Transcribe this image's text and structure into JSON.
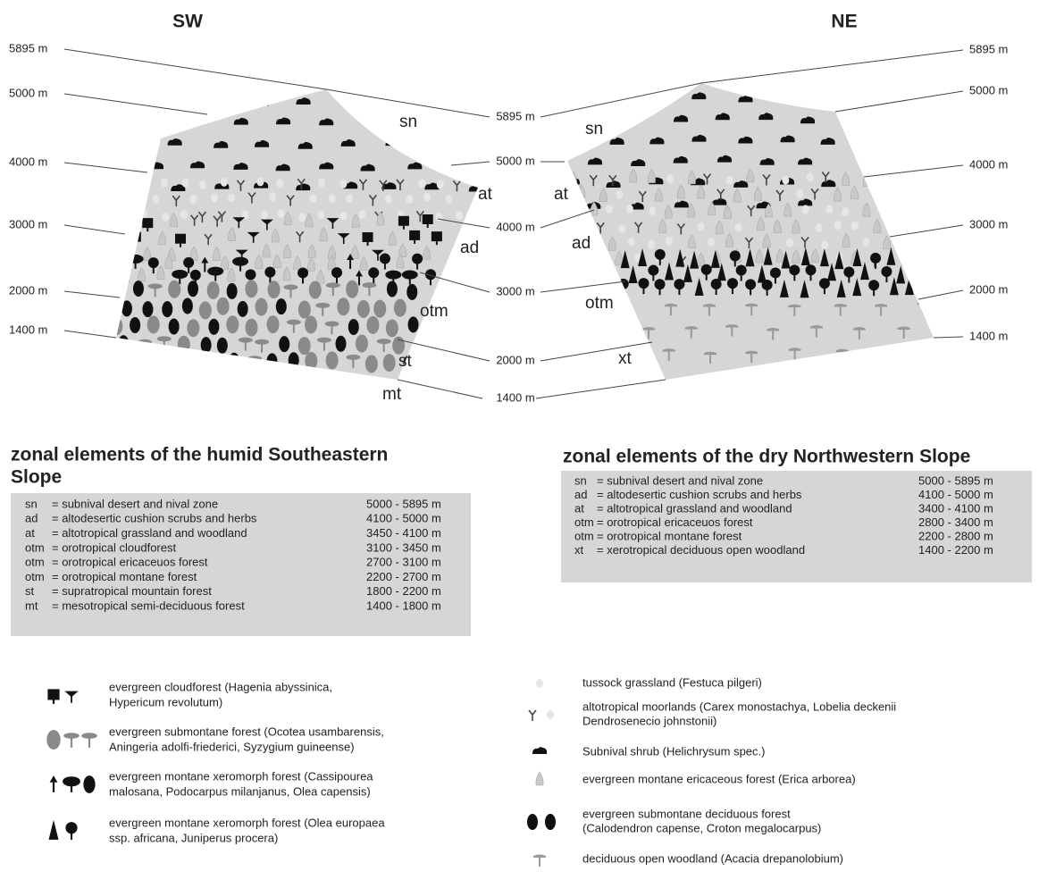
{
  "sw": {
    "title": "SW",
    "zones": [
      "sn",
      "at",
      "ad",
      "otm",
      "st",
      "mt"
    ]
  },
  "ne": {
    "title": "NE",
    "zones": [
      "sn",
      "at",
      "ad",
      "otm",
      "xt"
    ]
  },
  "left_altitudes": [
    "5895 m",
    "5000 m",
    "4000 m",
    "3000 m",
    "2000 m",
    "1400 m"
  ],
  "center_altitudes": [
    "5895 m",
    "5000 m",
    "4000 m",
    "3000 m",
    "2000 m",
    "1400 m"
  ],
  "right_altitudes": [
    "5895 m",
    "5000 m",
    "4000 m",
    "3000 m",
    "2000 m",
    "1400 m"
  ],
  "humid": {
    "title_lines": [
      "zonal elements of the humid Southeastern",
      "Slope"
    ],
    "rows": [
      [
        "sn",
        "= subnival desert and nival zone",
        "5000 - 5895 m"
      ],
      [
        "ad",
        "= altodesertic cushion scrubs and herbs",
        "4100 - 5000 m"
      ],
      [
        "at",
        "= altotropical grassland and woodland",
        "3450 - 4100 m"
      ],
      [
        "otm",
        "= orotropical cloudforest",
        "3100 - 3450 m"
      ],
      [
        "otm",
        "= orotropical ericaceuos forest",
        "2700 - 3100 m"
      ],
      [
        "otm",
        "= orotropical montane forest",
        "2200 - 2700 m"
      ],
      [
        "st",
        "= supratropical mountain forest",
        "1800 - 2200 m"
      ],
      [
        "mt",
        "= mesotropical semi-deciduous forest",
        "1400 - 1800 m"
      ]
    ]
  },
  "dry": {
    "title_lines": [
      "zonal elements of the dry Northwestern Slope"
    ],
    "rows": [
      [
        "sn",
        "= subnival desert  and nival zone",
        "5000 - 5895 m"
      ],
      [
        "ad",
        "= altodesertic cushion scrubs and herbs",
        "4100 - 5000 m"
      ],
      [
        "at",
        "= altotropical grassland and woodland",
        "3400 - 4100 m"
      ],
      [
        "otm",
        "= orotropical ericaceuos forest",
        "2800 - 3400 m"
      ],
      [
        "otm",
        "= orotropical montane forest",
        "2200 - 2800 m"
      ],
      [
        "xt",
        "= xerotropical deciduous open woodland",
        "1400 -  2200 m"
      ]
    ]
  },
  "legend_left": [
    {
      "lines": [
        "evergreen cloudforest  (Hagenia abyssinica,",
        "Hypericum revolutum)"
      ]
    },
    {
      "lines": [
        "evergreen submontane forest  (Ocotea usambarensis,",
        "Aningeria adolfi-friederici, Syzygium guineense)"
      ]
    },
    {
      "lines": [
        "evergreen montane xeromorph forest (Cassipourea",
        "malosana, Podocarpus milanjanus, Olea capensis)"
      ]
    },
    {
      "lines": [
        "evergreen montane xeromorph forest (Olea europaea",
        "ssp. africana, Juniperus procera)"
      ]
    }
  ],
  "legend_right": [
    {
      "lines": [
        "tussock grassland (Festuca pilgeri)"
      ]
    },
    {
      "lines": [
        "altotropical moorlands (Carex monostachya, Lobelia deckenii",
        "Dendrosenecio johnstonii)"
      ]
    },
    {
      "lines": [
        "Subnival shrub (Helichrysum spec.)"
      ]
    },
    {
      "lines": [
        "evergreen montane ericaceous forest (Erica arborea)"
      ]
    },
    {
      "lines": [
        "evergreen submontane deciduous forest",
        "(Calodendron capense, Croton megalocarpus)"
      ]
    },
    {
      "lines": [
        "deciduous open woodland (Acacia drepanolobium)"
      ]
    }
  ]
}
